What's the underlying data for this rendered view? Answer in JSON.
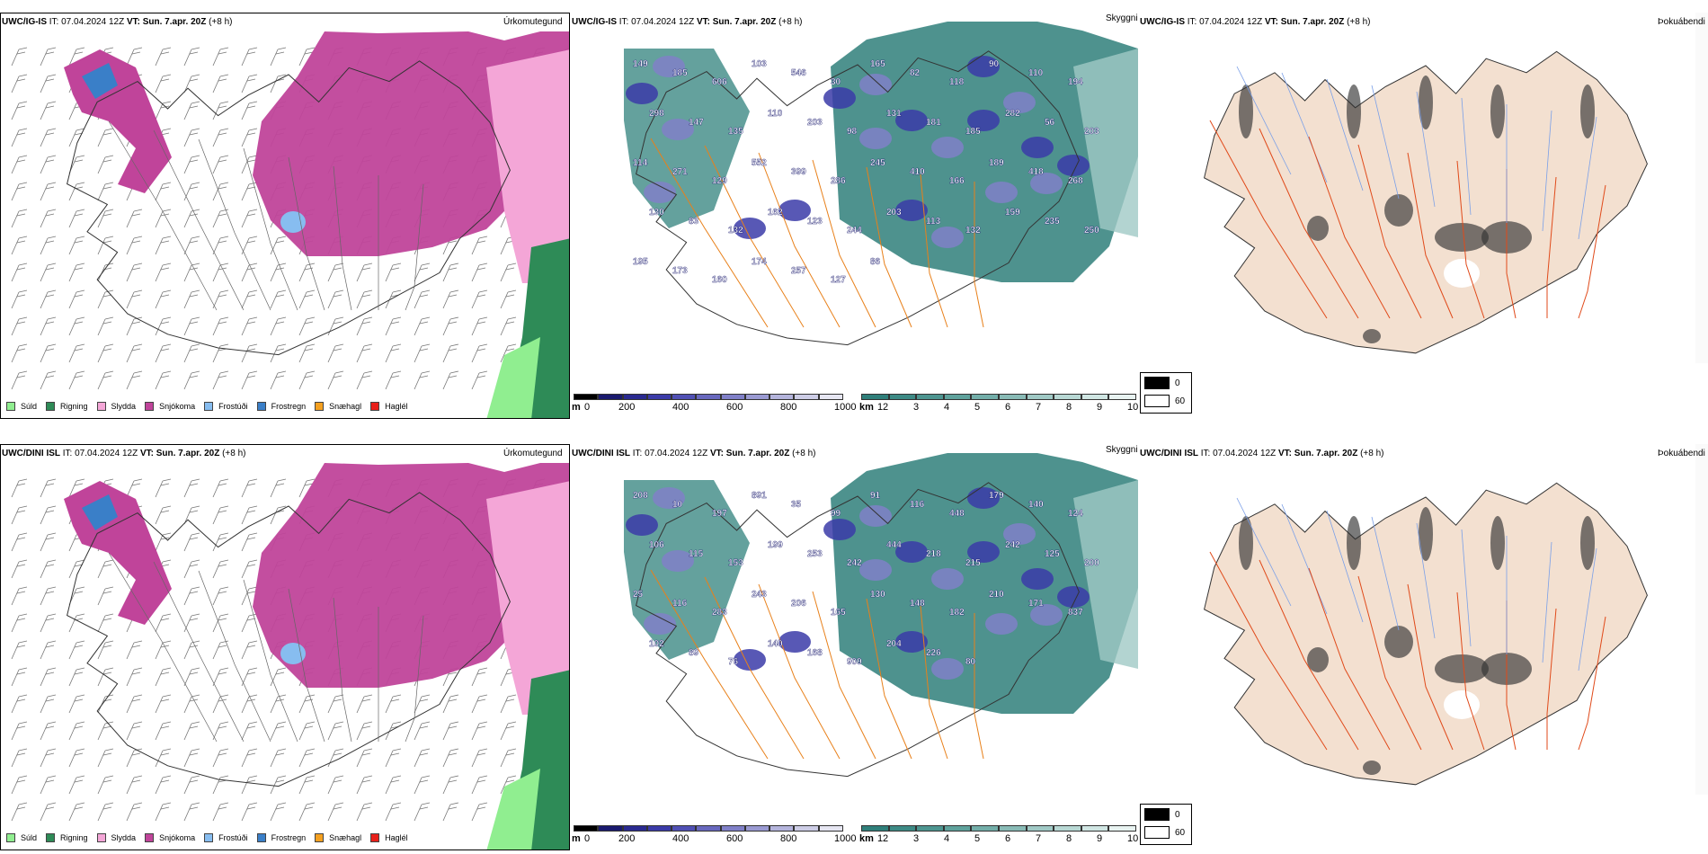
{
  "rows": [
    {
      "model": "UWC/IG-IS",
      "it_label": "IT:",
      "it_value": "07.04.2024 12Z",
      "vt_label": "VT:",
      "vt_value": "Sun. 7.apr. 20Z",
      "lead": "(+8 h)",
      "precip_title": "Úrkomutegund",
      "cloud_title": "Skyggni",
      "fog_title": "Þokuábendi",
      "labels": [
        "149",
        "185",
        "606",
        "103",
        "546",
        "30",
        "165",
        "82",
        "118",
        "90",
        "110",
        "194",
        "298",
        "147",
        "135",
        "110",
        "203",
        "98",
        "131",
        "181",
        "185",
        "282",
        "56",
        "203",
        "114",
        "271",
        "129",
        "552",
        "399",
        "286",
        "245",
        "410",
        "166",
        "189",
        "418",
        "268",
        "130",
        "83",
        "132",
        "162",
        "123",
        "244",
        "203",
        "113",
        "132",
        "159",
        "235",
        "250",
        "195",
        "173",
        "160",
        "174",
        "257",
        "127",
        "86"
      ]
    },
    {
      "model": "UWC/DINI ISL",
      "it_label": "IT:",
      "it_value": "07.04.2024 12Z",
      "vt_label": "VT:",
      "vt_value": "Sun. 7.apr. 20Z",
      "lead": "(+8 h)",
      "precip_title": "Úrkomutegund",
      "cloud_title": "Skyggni",
      "fog_title": "Þokuábendi",
      "labels": [
        "208",
        "10",
        "197",
        "891",
        "35",
        "99",
        "91",
        "116",
        "448",
        "179",
        "140",
        "124",
        "106",
        "115",
        "153",
        "199",
        "253",
        "242",
        "444",
        "218",
        "215",
        "242",
        "125",
        "200",
        "25",
        "116",
        "283",
        "243",
        "206",
        "165",
        "130",
        "148",
        "182",
        "210",
        "171",
        "837",
        "102",
        "89",
        "76",
        "140",
        "168",
        "909",
        "204",
        "226",
        "80"
      ]
    }
  ],
  "precip_legend": [
    {
      "label": "Súld",
      "color": "#90ee90"
    },
    {
      "label": "Rigning",
      "color": "#2e8b57"
    },
    {
      "label": "Slydda",
      "color": "#f4a6d7"
    },
    {
      "label": "Snjókoma",
      "color": "#c0449a"
    },
    {
      "label": "Frostúði",
      "color": "#87bdf0"
    },
    {
      "label": "Frostregn",
      "color": "#3a7fc8"
    },
    {
      "label": "Snæhagl",
      "color": "#f4a020"
    },
    {
      "label": "Haglél",
      "color": "#e8201a"
    }
  ],
  "height_bar": {
    "unit": "m",
    "ticks": [
      "0",
      "200",
      "400",
      "600",
      "800",
      "1000"
    ],
    "colors": [
      "#000000",
      "#1a1a6e",
      "#2a2a90",
      "#3b3ba8",
      "#5050b4",
      "#6868be",
      "#8080c8",
      "#9a9ad2",
      "#b4b4dc",
      "#cdcde6",
      "#e6e6f2"
    ]
  },
  "vis_bar": {
    "unit": "km",
    "ticks": [
      "1",
      "2",
      "3",
      "4",
      "5",
      "6",
      "7",
      "8",
      "9",
      "10"
    ],
    "colors": [
      "#2f7f7a",
      "#3d8a85",
      "#4d9590",
      "#5fa29c",
      "#73aea9",
      "#89bbb6",
      "#a0c9c5",
      "#b8d8d4",
      "#d0e6e3",
      "#e8f3f1"
    ]
  },
  "fog_legend": [
    {
      "value": "0",
      "color": "#000000"
    },
    {
      "value": "60",
      "color": "#ffffff"
    }
  ]
}
